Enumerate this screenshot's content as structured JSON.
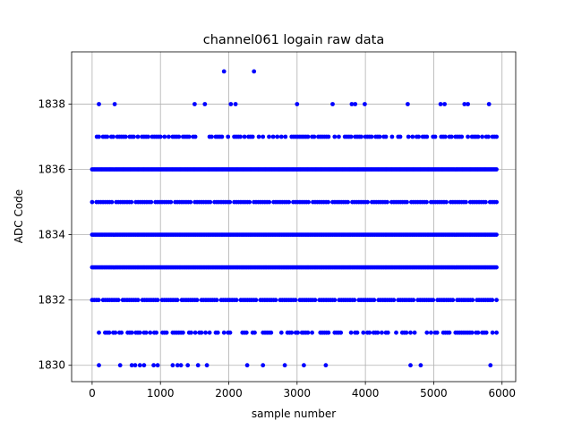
{
  "chart_data": {
    "type": "scatter",
    "title": "channel061 logain raw data",
    "xlabel": "sample number",
    "ylabel": "ADC Code",
    "xlim": [
      -300,
      6200
    ],
    "ylim": [
      1829.5,
      1839.6
    ],
    "xticks": [
      0,
      1000,
      2000,
      3000,
      4000,
      5000,
      6000
    ],
    "yticks": [
      1830,
      1832,
      1834,
      1836,
      1838
    ],
    "grid": true,
    "marker_color": "#0000ff",
    "sample_range": [
      0,
      5935
    ],
    "dense_levels": [
      1832,
      1833,
      1834,
      1835,
      1836
    ],
    "series": [
      {
        "name": "",
        "points": [
          {
            "x": 1930,
            "y": 1839
          },
          {
            "x": 2370,
            "y": 1839
          },
          {
            "x": 100,
            "y": 1838
          },
          {
            "x": 330,
            "y": 1838
          },
          {
            "x": 1500,
            "y": 1838
          },
          {
            "x": 1650,
            "y": 1838
          },
          {
            "x": 2030,
            "y": 1838
          },
          {
            "x": 2100,
            "y": 1838
          },
          {
            "x": 3000,
            "y": 1838
          },
          {
            "x": 3520,
            "y": 1838
          },
          {
            "x": 3800,
            "y": 1838
          },
          {
            "x": 3850,
            "y": 1838
          },
          {
            "x": 3990,
            "y": 1838
          },
          {
            "x": 4620,
            "y": 1838
          },
          {
            "x": 5100,
            "y": 1838
          },
          {
            "x": 5160,
            "y": 1838
          },
          {
            "x": 5450,
            "y": 1838
          },
          {
            "x": 5500,
            "y": 1838
          },
          {
            "x": 5810,
            "y": 1838
          },
          {
            "x": 100,
            "y": 1830
          },
          {
            "x": 410,
            "y": 1830
          },
          {
            "x": 580,
            "y": 1830
          },
          {
            "x": 630,
            "y": 1830
          },
          {
            "x": 700,
            "y": 1830
          },
          {
            "x": 760,
            "y": 1830
          },
          {
            "x": 900,
            "y": 1830
          },
          {
            "x": 960,
            "y": 1830
          },
          {
            "x": 1180,
            "y": 1830
          },
          {
            "x": 1250,
            "y": 1830
          },
          {
            "x": 1300,
            "y": 1830
          },
          {
            "x": 1400,
            "y": 1830
          },
          {
            "x": 1550,
            "y": 1830
          },
          {
            "x": 1680,
            "y": 1830
          },
          {
            "x": 2270,
            "y": 1830
          },
          {
            "x": 2500,
            "y": 1830
          },
          {
            "x": 2820,
            "y": 1830
          },
          {
            "x": 3100,
            "y": 1830
          },
          {
            "x": 3420,
            "y": 1830
          },
          {
            "x": 4660,
            "y": 1830
          },
          {
            "x": 4810,
            "y": 1830
          },
          {
            "x": 5830,
            "y": 1830
          }
        ]
      }
    ]
  }
}
